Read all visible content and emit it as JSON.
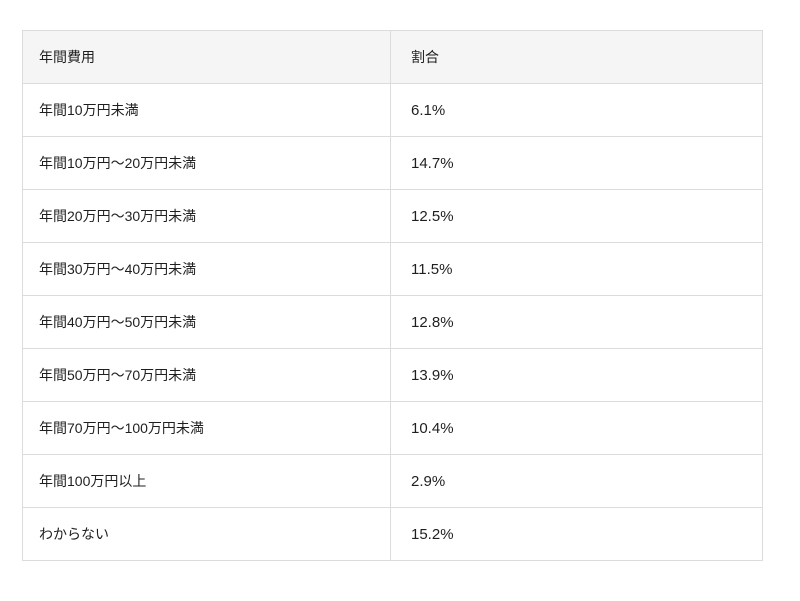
{
  "table": {
    "headers": [
      "年間費用",
      "割合"
    ],
    "rows": [
      {
        "category": "年間10万円未満",
        "value": "6.1%"
      },
      {
        "category": "年間10万円〜20万円未満",
        "value": "14.7%"
      },
      {
        "category": "年間20万円〜30万円未満",
        "value": "12.5%"
      },
      {
        "category": "年間30万円〜40万円未満",
        "value": "11.5%"
      },
      {
        "category": "年間40万円〜50万円未満",
        "value": "12.8%"
      },
      {
        "category": "年間50万円〜70万円未満",
        "value": "13.9%"
      },
      {
        "category": "年間70万円〜100万円未満",
        "value": "10.4%"
      },
      {
        "category": "年間100万円以上",
        "value": "2.9%"
      },
      {
        "category": "わからない",
        "value": "15.2%"
      }
    ]
  },
  "colors": {
    "header_bg": "#f5f5f5",
    "border": "#dcdcdc",
    "text": "#1f1f1f",
    "page_bg": "#ffffff"
  },
  "chart_data": {
    "type": "table",
    "title": "",
    "columns": [
      "年間費用",
      "割合"
    ],
    "categories": [
      "年間10万円未満",
      "年間10万円〜20万円未満",
      "年間20万円〜30万円未満",
      "年間30万円〜40万円未満",
      "年間40万円〜50万円未満",
      "年間50万円〜70万円未満",
      "年間70万円〜100万円未満",
      "年間100万円以上",
      "わからない"
    ],
    "values": [
      6.1,
      14.7,
      12.5,
      11.5,
      12.8,
      13.9,
      10.4,
      2.9,
      15.2
    ],
    "value_unit": "%",
    "grid": true,
    "header_background": "#f5f5f5"
  }
}
